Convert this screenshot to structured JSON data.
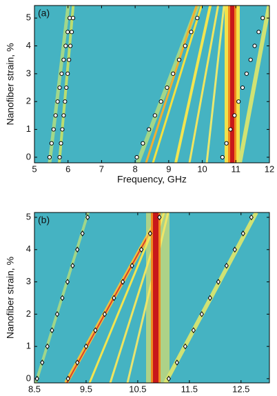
{
  "chart_data": [
    {
      "type": "scatter",
      "panel_label": "(a)",
      "xlabel": "Frequency, GHz",
      "ylabel": "Nanofiber strain, %",
      "xlim": [
        5,
        12
      ],
      "ylim": [
        -0.2,
        5.45
      ],
      "xticks": [
        5,
        6,
        7,
        8,
        9,
        10,
        11,
        12
      ],
      "yticks": [
        0,
        1,
        2,
        3,
        4,
        5
      ],
      "marker": "circle",
      "series": [
        {
          "x": [
            5.45,
            5.51,
            5.57,
            5.63,
            5.69,
            5.75,
            5.81,
            5.87,
            5.93,
            5.99,
            6.05
          ],
          "values": [
            0,
            0.5,
            1,
            1.5,
            2,
            2.5,
            3,
            3.5,
            4,
            4.5,
            5
          ]
        },
        {
          "x": [
            5.75,
            5.79,
            5.83,
            5.87,
            5.91,
            5.95,
            5.99,
            6.03,
            6.07,
            6.11,
            6.15
          ],
          "values": [
            0,
            0.5,
            1,
            1.5,
            2,
            2.5,
            3,
            3.5,
            4,
            4.5,
            5
          ]
        },
        {
          "x": [
            8.05,
            8.23,
            8.41,
            8.59,
            8.77,
            8.95,
            9.13,
            9.31,
            9.49,
            9.67,
            9.85
          ],
          "values": [
            0,
            0.5,
            1,
            1.5,
            2,
            2.5,
            3,
            3.5,
            4,
            4.5,
            5
          ]
        },
        {
          "x": [
            10.6,
            10.72,
            10.84,
            10.96,
            11.08,
            11.2,
            11.32,
            11.44,
            11.56,
            11.68,
            11.8
          ],
          "values": [
            0,
            0.5,
            1,
            1.5,
            2,
            2.5,
            3,
            3.5,
            4,
            4.5,
            5
          ]
        }
      ]
    },
    {
      "type": "scatter",
      "panel_label": "(b)",
      "xlabel": "Frequency, GHz",
      "ylabel": "Nanofiber strain, %",
      "xlim": [
        8.5,
        13.05
      ],
      "ylim": [
        -0.13,
        5.15
      ],
      "xticks": [
        8.5,
        9.5,
        10.5,
        11.5,
        12.5
      ],
      "yticks": [
        0,
        1,
        2,
        3,
        4,
        5
      ],
      "marker": "diamond",
      "series": [
        {
          "x": [
            8.55,
            8.65,
            8.75,
            8.84,
            8.94,
            9.04,
            9.14,
            9.24,
            9.33,
            9.43,
            9.53
          ],
          "values": [
            0,
            0.5,
            1,
            1.5,
            2,
            2.5,
            3,
            3.5,
            4,
            4.5,
            5
          ]
        },
        {
          "x": [
            9.15,
            9.33,
            9.5,
            9.68,
            9.86,
            10.04,
            10.21,
            10.39,
            10.57,
            10.74,
            10.92
          ],
          "values": [
            0,
            0.5,
            1,
            1.5,
            2,
            2.5,
            3,
            3.5,
            4,
            4.5,
            5
          ]
        },
        {
          "x": [
            11.1,
            11.26,
            11.42,
            11.58,
            11.74,
            11.9,
            12.06,
            12.22,
            12.38,
            12.54,
            12.7
          ],
          "values": [
            0,
            0.5,
            1,
            1.5,
            2,
            2.5,
            3,
            3.5,
            4,
            4.5,
            5
          ]
        }
      ]
    }
  ]
}
